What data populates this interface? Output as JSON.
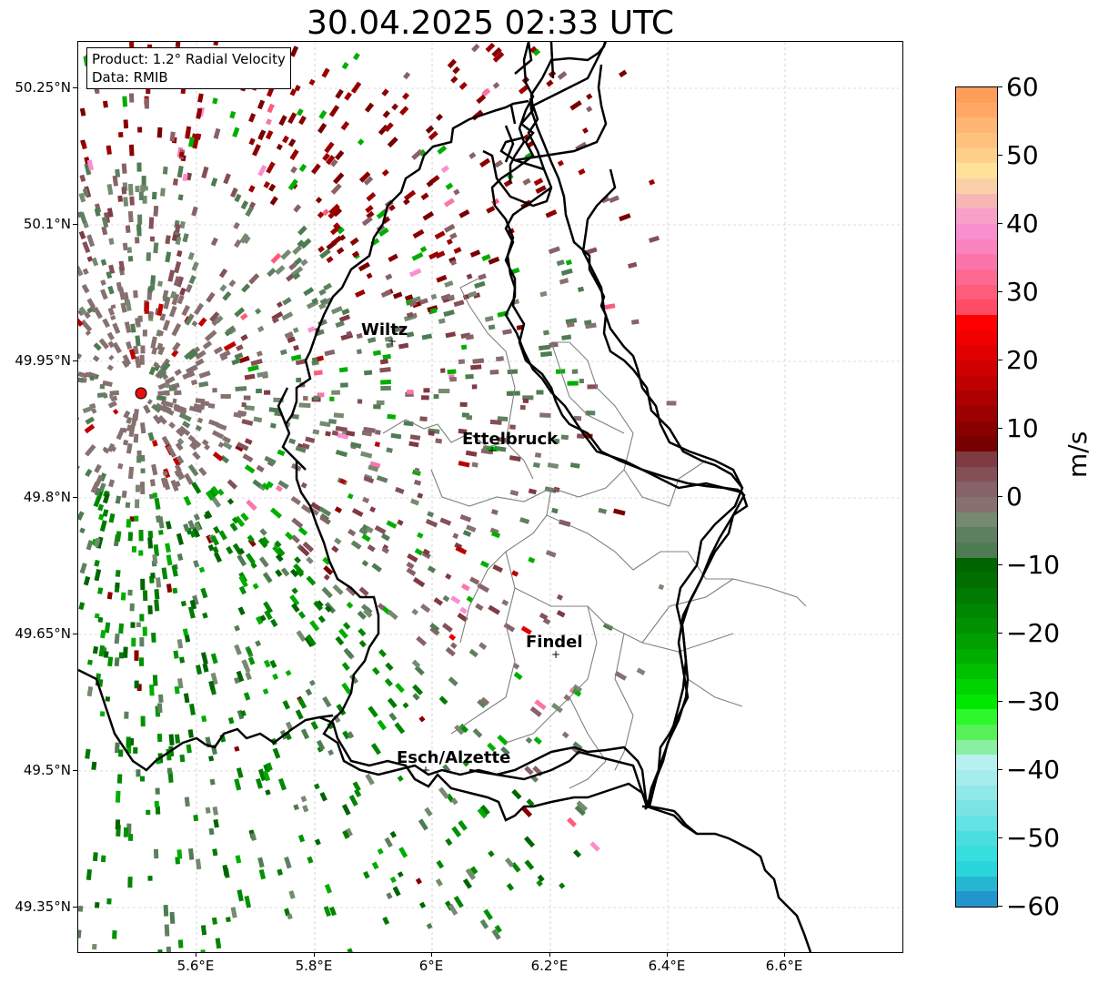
{
  "title": "30.04.2025 02:33 UTC",
  "info_box": {
    "product": "Product: 1.2° Radial Velocity",
    "data": "Data: RMIB"
  },
  "map": {
    "lat_labels": [
      "50.25°N",
      "50.1°N",
      "49.95°N",
      "49.8°N",
      "49.65°N",
      "49.5°N",
      "49.35°N"
    ],
    "lon_labels": [
      "5.6°E",
      "5.8°E",
      "6°E",
      "6.2°E",
      "6.4°E",
      "6.6°E"
    ],
    "cities": [
      {
        "name": "Wiltz"
      },
      {
        "name": "Ettelbruck"
      },
      {
        "name": "Findel"
      },
      {
        "name": "Esch/Alzette"
      }
    ],
    "radar_marker_color": "#e8100e",
    "border_color": "#000000",
    "canton_color": "#808080"
  },
  "colorbar": {
    "tick_labels": [
      "60",
      "50",
      "40",
      "30",
      "20",
      "10",
      "0",
      "−10",
      "−20",
      "−30",
      "−40",
      "−50",
      "−60"
    ],
    "unit": "m/s",
    "range": [
      -60,
      60
    ]
  }
}
